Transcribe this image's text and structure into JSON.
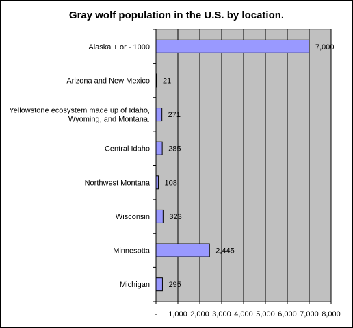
{
  "chart_data": {
    "type": "bar",
    "orientation": "horizontal",
    "title": "Gray wolf population in the U.S. by location.",
    "categories": [
      "Alaska + or - 1000",
      "Arizona and New Mexico",
      "Yellowstone ecosystem made up of Idaho, Wyoming, and Montana.",
      "Central Idaho",
      "Northwest Montana",
      "Wisconsin",
      "Minnesotta",
      "Michigan"
    ],
    "category_label_lines": [
      [
        "Alaska + or - 1000"
      ],
      [
        "Arizona and New Mexico"
      ],
      [
        "Yellowstone ecosystem made up of Idaho,",
        "Wyoming, and Montana."
      ],
      [
        "Central Idaho"
      ],
      [
        "Northwest Montana"
      ],
      [
        "Wisconsin"
      ],
      [
        "Minnesotta"
      ],
      [
        "Michigan"
      ]
    ],
    "values": [
      7000,
      21,
      271,
      285,
      108,
      323,
      2445,
      295
    ],
    "value_labels": [
      "7,000",
      "21",
      "271",
      "285",
      "108",
      "323",
      "2,445",
      "295"
    ],
    "xlim": [
      0,
      8000
    ],
    "x_ticks": [
      0,
      1000,
      2000,
      3000,
      4000,
      5000,
      6000,
      7000,
      8000
    ],
    "x_tick_labels": [
      "-",
      "1,000",
      "2,000",
      "3,000",
      "4,000",
      "5,000",
      "6,000",
      "7,000",
      "8,000"
    ],
    "grid": true,
    "legend": "none",
    "colors": {
      "bar_fill": "#9999ff",
      "bar_stroke": "#000000",
      "plot_background": "#c0c0c0",
      "gridline": "#000000"
    }
  }
}
